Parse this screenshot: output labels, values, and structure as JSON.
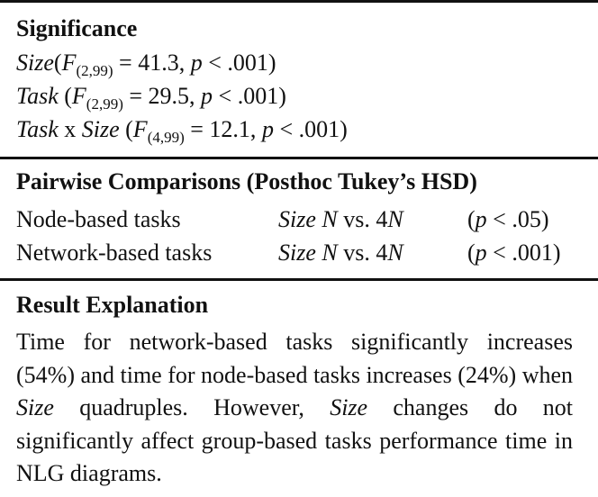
{
  "significance": {
    "heading": "Significance",
    "row1": {
      "factor": "Size",
      "open": "(",
      "F": "F",
      "df": "(2,99)",
      "rest": " = 41.3, ",
      "p": "p",
      "ptail": " < .001)"
    },
    "row2": {
      "factor": "Task",
      "open": " (",
      "F": "F",
      "df": "(2,99)",
      "rest": " = 29.5, ",
      "p": "p",
      "ptail": " < .001)"
    },
    "row3": {
      "factor_a": "Task",
      "x": " x ",
      "factor_b": "Size",
      "open": " (",
      "F": "F",
      "df": "(4,99)",
      "rest": " = 12.1, ",
      "p": "p",
      "ptail": " < .001)"
    }
  },
  "pairwise": {
    "heading": "Pairwise Comparisons (Posthoc Tukey’s HSD)",
    "rows": [
      {
        "task": "Node-based tasks",
        "size": "Size",
        "n1": "N",
        "vs": " vs. 4",
        "n2": "N",
        "p_open": "(",
        "p": "p",
        "p_tail": " < .05)"
      },
      {
        "task": "Network-based tasks",
        "size": "Size",
        "n1": "N",
        "vs": " vs. 4",
        "n2": "N",
        "p_open": "(",
        "p": "p",
        "p_tail": " < .001)"
      }
    ]
  },
  "explanation": {
    "heading": "Result Explanation",
    "t1": "Time for network-based tasks significantly increases (54%) and time for node-based tasks increases (24%) when ",
    "size1": "Size",
    "t2": " quadruples. However, ",
    "size2": "Size",
    "t3": " changes do not significantly affect group-based tasks performance time in NLG diagrams."
  }
}
